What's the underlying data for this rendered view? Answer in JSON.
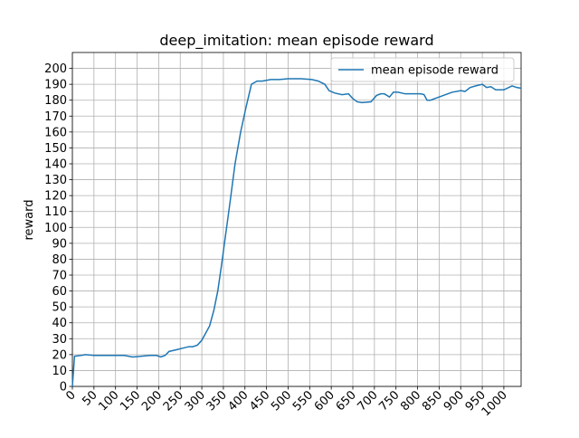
{
  "chart_data": {
    "type": "line",
    "title": "deep_imitation: mean episode reward",
    "y_label": "reward",
    "x": [
      0,
      5,
      20,
      30,
      50,
      80,
      100,
      120,
      140,
      160,
      180,
      195,
      205,
      215,
      224,
      240,
      255,
      270,
      279,
      290,
      300,
      310,
      318,
      328,
      337,
      345,
      355,
      365,
      377,
      390,
      402,
      415,
      428,
      440,
      450,
      460,
      480,
      500,
      530,
      555,
      570,
      585,
      595,
      608,
      625,
      640,
      650,
      660,
      671,
      692,
      705,
      715,
      723,
      735,
      744,
      755,
      771,
      785,
      807,
      815,
      822,
      830,
      845,
      860,
      880,
      900,
      910,
      922,
      935,
      950,
      960,
      970,
      981,
      1000,
      1019,
      1030,
      1040
    ],
    "series": [
      {
        "name": "mean episode reward",
        "color": "#1f77b4",
        "values": [
          0,
          19,
          19.5,
          20,
          19.5,
          19.5,
          19.5,
          19.5,
          18.5,
          19,
          19.5,
          19.5,
          18.5,
          19.5,
          22,
          23,
          24,
          25,
          25,
          26,
          29,
          34,
          38,
          48,
          60,
          75,
          95,
          115,
          140,
          160,
          175,
          190,
          192,
          192,
          192.5,
          193,
          193,
          193.5,
          193.5,
          193,
          192,
          190,
          186,
          184.5,
          183.5,
          184,
          181,
          179,
          178.5,
          179,
          183,
          184,
          184,
          182,
          185,
          185,
          184,
          184,
          184,
          183.5,
          180,
          180,
          181.5,
          183,
          185,
          186,
          185.5,
          188,
          189,
          190,
          188,
          188.5,
          186.5,
          186.5,
          189,
          188,
          187.5
        ]
      }
    ],
    "xlim": [
      0,
      1040
    ],
    "ylim": [
      0,
      210
    ],
    "xticks": [
      0,
      50,
      100,
      150,
      200,
      250,
      300,
      350,
      400,
      450,
      500,
      550,
      600,
      650,
      700,
      750,
      800,
      850,
      900,
      950,
      1000
    ],
    "yticks": [
      0,
      10,
      20,
      30,
      40,
      50,
      60,
      70,
      80,
      90,
      100,
      110,
      120,
      130,
      140,
      150,
      160,
      170,
      180,
      190,
      200
    ],
    "grid": true,
    "legend": "upper right"
  }
}
